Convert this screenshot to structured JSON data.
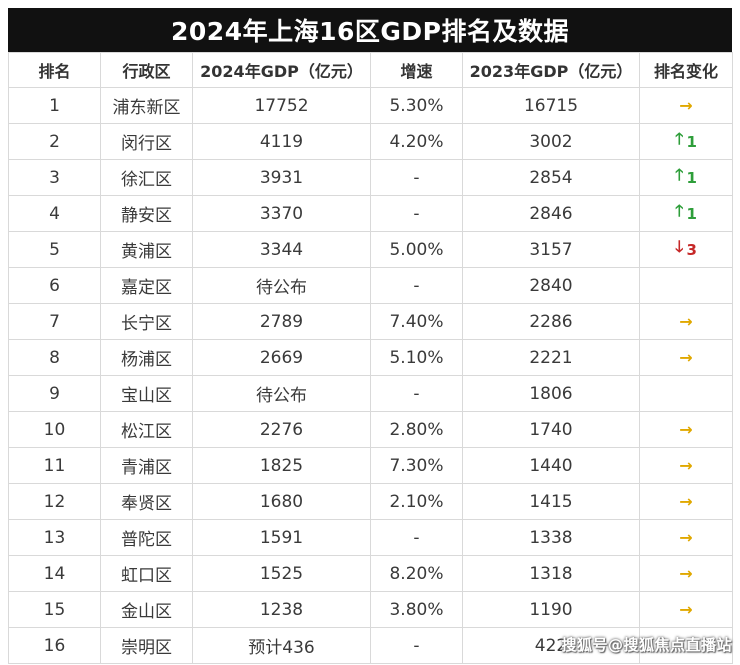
{
  "title": "2024年上海16区GDP排名及数据",
  "headers": {
    "rank": "排名",
    "district": "行政区",
    "gdp_2024": "2024年GDP（亿元）",
    "growth": "增速",
    "gdp_2023": "2023年GDP（亿元）",
    "rank_change": "排名变化"
  },
  "rows": [
    {
      "rank": "1",
      "district": "浦东新区",
      "gdp_2024": "17752",
      "growth": "5.30%",
      "gdp_2023": "16715",
      "change": {
        "dir": "flat",
        "value": ""
      }
    },
    {
      "rank": "2",
      "district": "闵行区",
      "gdp_2024": "4119",
      "growth": "4.20%",
      "gdp_2023": "3002",
      "change": {
        "dir": "up",
        "value": "1"
      }
    },
    {
      "rank": "3",
      "district": "徐汇区",
      "gdp_2024": "3931",
      "growth": "-",
      "gdp_2023": "2854",
      "change": {
        "dir": "up",
        "value": "1"
      }
    },
    {
      "rank": "4",
      "district": "静安区",
      "gdp_2024": "3370",
      "growth": "-",
      "gdp_2023": "2846",
      "change": {
        "dir": "up",
        "value": "1"
      }
    },
    {
      "rank": "5",
      "district": "黄浦区",
      "gdp_2024": "3344",
      "growth": "5.00%",
      "gdp_2023": "3157",
      "change": {
        "dir": "down",
        "value": "3"
      }
    },
    {
      "rank": "6",
      "district": "嘉定区",
      "gdp_2024": "待公布",
      "growth": "-",
      "gdp_2023": "2840",
      "change": {
        "dir": "none",
        "value": ""
      }
    },
    {
      "rank": "7",
      "district": "长宁区",
      "gdp_2024": "2789",
      "growth": "7.40%",
      "gdp_2023": "2286",
      "change": {
        "dir": "flat",
        "value": ""
      }
    },
    {
      "rank": "8",
      "district": "杨浦区",
      "gdp_2024": "2669",
      "growth": "5.10%",
      "gdp_2023": "2221",
      "change": {
        "dir": "flat",
        "value": ""
      }
    },
    {
      "rank": "9",
      "district": "宝山区",
      "gdp_2024": "待公布",
      "growth": "-",
      "gdp_2023": "1806",
      "change": {
        "dir": "none",
        "value": ""
      }
    },
    {
      "rank": "10",
      "district": "松江区",
      "gdp_2024": "2276",
      "growth": "2.80%",
      "gdp_2023": "1740",
      "change": {
        "dir": "flat",
        "value": ""
      }
    },
    {
      "rank": "11",
      "district": "青浦区",
      "gdp_2024": "1825",
      "growth": "7.30%",
      "gdp_2023": "1440",
      "change": {
        "dir": "flat",
        "value": ""
      }
    },
    {
      "rank": "12",
      "district": "奉贤区",
      "gdp_2024": "1680",
      "growth": "2.10%",
      "gdp_2023": "1415",
      "change": {
        "dir": "flat",
        "value": ""
      }
    },
    {
      "rank": "13",
      "district": "普陀区",
      "gdp_2024": "1591",
      "growth": "-",
      "gdp_2023": "1338",
      "change": {
        "dir": "flat",
        "value": ""
      }
    },
    {
      "rank": "14",
      "district": "虹口区",
      "gdp_2024": "1525",
      "growth": "8.20%",
      "gdp_2023": "1318",
      "change": {
        "dir": "flat",
        "value": ""
      }
    },
    {
      "rank": "15",
      "district": "金山区",
      "gdp_2024": "1238",
      "growth": "3.80%",
      "gdp_2023": "1190",
      "change": {
        "dir": "flat",
        "value": ""
      }
    },
    {
      "rank": "16",
      "district": "崇明区",
      "gdp_2024": "预计436",
      "growth": "-",
      "gdp_2023": "422",
      "change": {
        "dir": "none",
        "value": ""
      }
    }
  ],
  "arrows": {
    "up": "🡑",
    "down": "🡓",
    "flat": "→"
  },
  "colors": {
    "title_bg": "#111111",
    "up": "#2e9e3a",
    "down": "#c62828",
    "flat": "#e0a800"
  },
  "watermark": "搜狐号@搜狐焦点直播站"
}
